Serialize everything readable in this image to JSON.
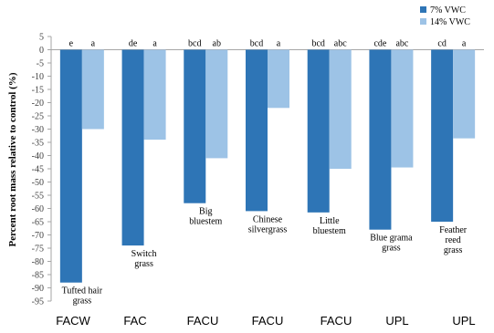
{
  "chart_data": {
    "type": "bar",
    "title": "",
    "xlabel": "",
    "ylabel": "Percent root mass relative to control (%)",
    "ylim": [
      -95,
      5
    ],
    "yticks": [
      5,
      0,
      -5,
      -10,
      -15,
      -20,
      -25,
      -30,
      -35,
      -40,
      -45,
      -50,
      -55,
      -60,
      -65,
      -70,
      -75,
      -80,
      -85,
      -90,
      -95
    ],
    "grid": false,
    "legend_position": "top-right",
    "categories": [
      "FACW",
      "FAC",
      "FACU",
      "FACU",
      "FACU",
      "UPL",
      "UPL"
    ],
    "species": [
      "Tufted hair grass",
      "Switch grass",
      "Big bluestem",
      "Chinese silvergrass",
      "Little bluestem",
      "Blue grama grass",
      "Feather reed grass"
    ],
    "series": [
      {
        "name": "7% VWC",
        "color": "#2E75B6",
        "values": [
          -88,
          -74,
          -58,
          -61,
          -61.5,
          -68,
          -65
        ],
        "letters": [
          "e",
          "de",
          "bcd",
          "bcd",
          "bcd",
          "cde",
          "cd"
        ]
      },
      {
        "name": "14% VWC",
        "color": "#9DC3E6",
        "values": [
          -30,
          -34,
          -41,
          -22,
          -45,
          -44.5,
          -33.5
        ],
        "letters": [
          "a",
          "a",
          "ab",
          "a",
          "abc",
          "abc",
          "a"
        ]
      }
    ]
  }
}
